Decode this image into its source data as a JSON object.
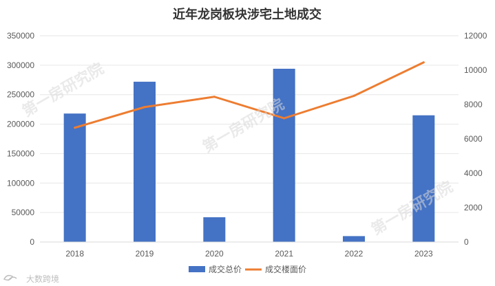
{
  "chart_data": {
    "type": "bar",
    "title": "近年龙岗板块涉宅土地成交",
    "categories": [
      "2018",
      "2019",
      "2020",
      "2021",
      "2022",
      "2023"
    ],
    "series": [
      {
        "name": "成交总价",
        "type": "bar",
        "axis": "left",
        "color": "#4472c4",
        "values": [
          218000,
          272000,
          42000,
          294000,
          10000,
          215000
        ]
      },
      {
        "name": "成交楼面价",
        "type": "line",
        "axis": "right",
        "color": "#ed7d31",
        "values": [
          6650,
          7850,
          8450,
          7200,
          8500,
          10450
        ]
      }
    ],
    "y_left": {
      "min": 0,
      "max": 350000,
      "ticks": [
        "0",
        "50000",
        "100000",
        "150000",
        "200000",
        "250000",
        "300000",
        "350000"
      ]
    },
    "y_right": {
      "min": 0,
      "max": 12000,
      "ticks": [
        "0",
        "2000",
        "4000",
        "6000",
        "8000",
        "10000",
        "12000"
      ]
    },
    "grid": true,
    "legend": "bottom"
  },
  "watermarks": [
    "第一房研究院",
    "第一房研究院",
    "第一房研究院"
  ],
  "brand": {
    "text": "大数跨境",
    "icon": "brand-logo-icon"
  }
}
